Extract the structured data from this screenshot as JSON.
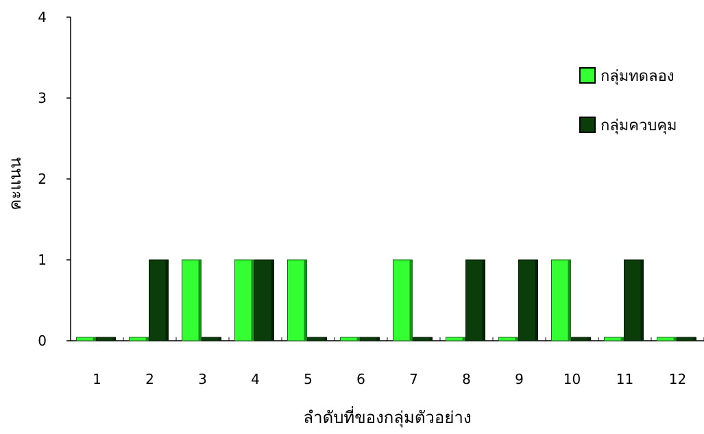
{
  "chart_data": {
    "type": "bar",
    "title": "",
    "xlabel": "ลำดับที่ของกลุ่มตัวอย่าง",
    "ylabel": "คะแนน",
    "categories": [
      "1",
      "2",
      "3",
      "4",
      "5",
      "6",
      "7",
      "8",
      "9",
      "10",
      "11",
      "12"
    ],
    "series": [
      {
        "name": "กลุ่มทดลอง",
        "color": "#33ff33",
        "values": [
          0,
          0,
          1,
          1,
          1,
          0,
          1,
          0,
          0,
          1,
          0,
          0
        ]
      },
      {
        "name": "กลุ่มควบคุม",
        "color": "#0b3d0b",
        "values": [
          0,
          1,
          0,
          1,
          0,
          0,
          0,
          1,
          1,
          0,
          1,
          0
        ]
      }
    ],
    "ylim": [
      0,
      4
    ],
    "yticks": [
      "0",
      "1",
      "2",
      "3",
      "4"
    ],
    "grid": false,
    "legend_position": "right"
  }
}
